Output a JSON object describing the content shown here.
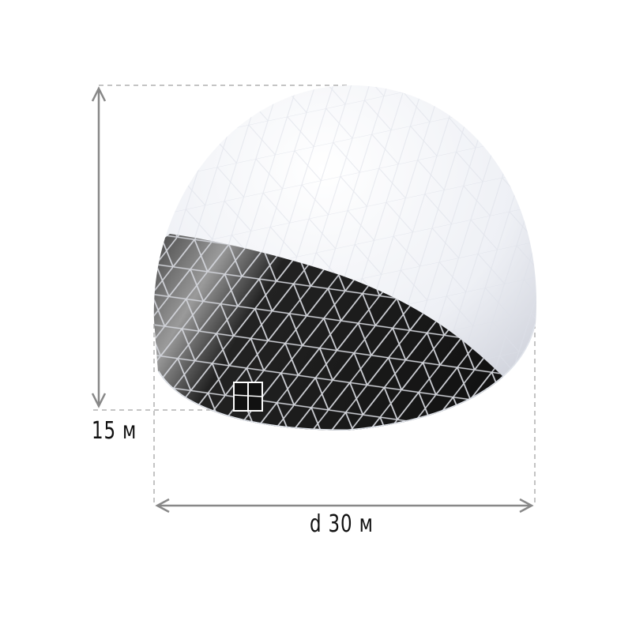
{
  "dimensions": {
    "height_label": "15 м",
    "diameter_label": "d 30 м"
  },
  "colors": {
    "dome_shell": "#f2f4f8",
    "band": "#1a1a1a",
    "frame_lines": "#c8cad0",
    "dimension_lines": "#888888"
  }
}
